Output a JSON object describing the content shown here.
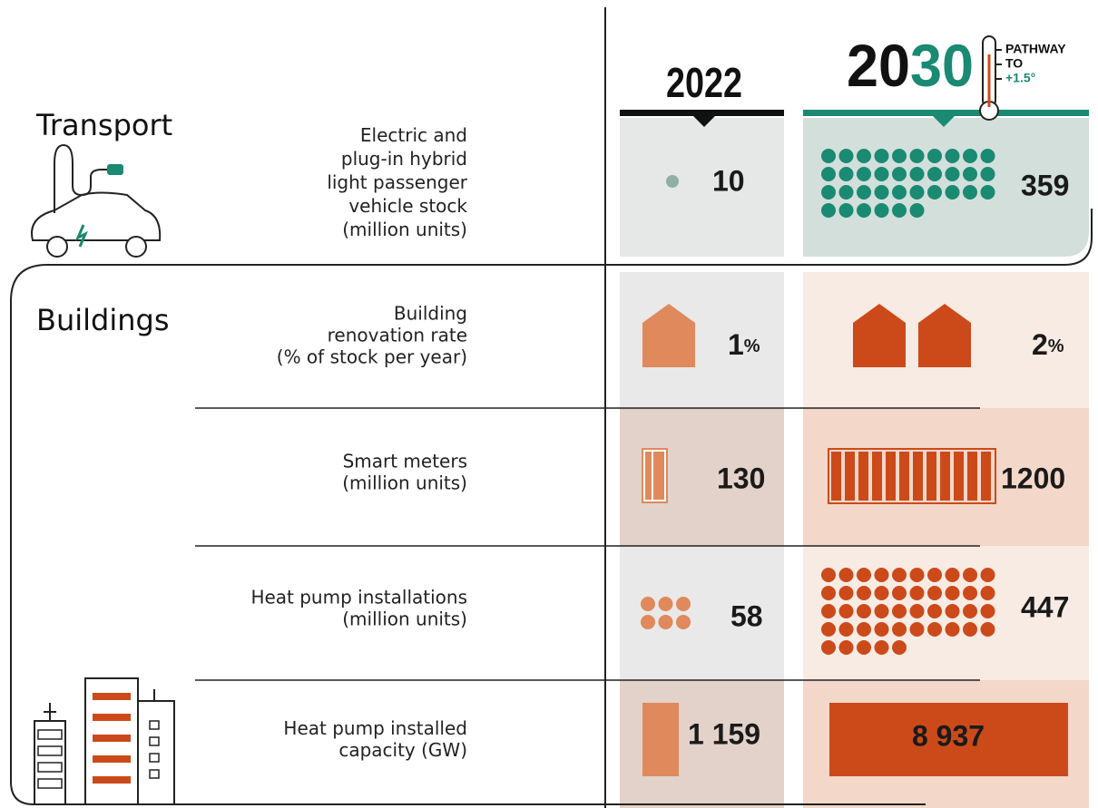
{
  "header": {
    "year_current": "2022",
    "year_target_a": "20",
    "year_target_b": "30",
    "pathway": [
      "PATHWAY",
      "TO",
      "+1.5°"
    ]
  },
  "sections": [
    {
      "title": "Transport",
      "rows": [
        {
          "label": [
            "Electric and",
            "plug-in hybrid",
            "light passenger",
            "vehicle stock",
            "(million units)"
          ],
          "value_2022": "10",
          "value_2030": "359"
        }
      ]
    },
    {
      "title": "Buildings",
      "rows": [
        {
          "label": [
            "Building",
            "renovation rate",
            "(% of stock per year)"
          ],
          "value_2022": "1",
          "unit_2022": "%",
          "value_2030": "2",
          "unit_2030": "%"
        },
        {
          "label": [
            "Smart meters",
            "(million units)"
          ],
          "value_2022": "130",
          "value_2030": "1200"
        },
        {
          "label": [
            "Heat pump installations",
            "(million units)"
          ],
          "value_2022": "58",
          "value_2030": "447"
        },
        {
          "label": [
            "Heat pump installed",
            "capacity (GW)"
          ],
          "value_2022": "1 159",
          "value_2030": "8 937"
        }
      ]
    }
  ]
}
